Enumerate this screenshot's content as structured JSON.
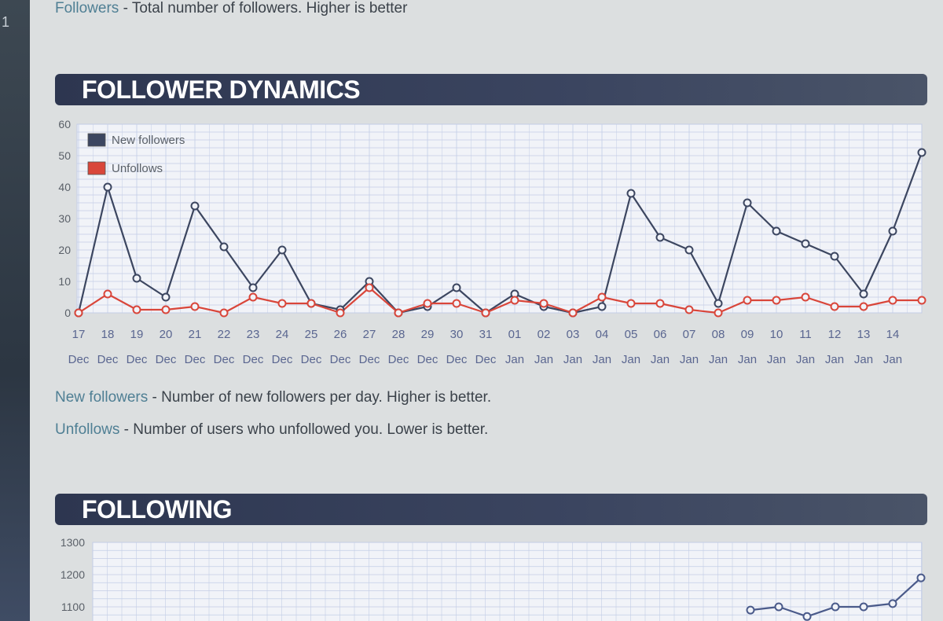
{
  "sidebar": {
    "number": "1"
  },
  "top_note": {
    "term": "Followers",
    "text": " - Total number of followers. Higher is better"
  },
  "sections": {
    "dynamics_title": "FOLLOWER DYNAMICS",
    "following_title": "FOLLOWING"
  },
  "notes": {
    "new_followers_term": "New followers",
    "new_followers_text": " - Number of new followers per day. Higher is better.",
    "unfollows_term": "Unfollows",
    "unfollows_text": " - Number of users who unfollowed you. Lower is better."
  },
  "colors": {
    "new_followers": "#3c4660",
    "unfollows": "#d9463a",
    "grid": "#c3cde6"
  },
  "chart_data": [
    {
      "type": "line",
      "title": "FOLLOWER DYNAMICS",
      "ylim": [
        0,
        60
      ],
      "yticks": [
        0,
        10,
        20,
        30,
        40,
        50,
        60
      ],
      "grid": true,
      "legend_position": "top-left",
      "categories": [
        "17",
        "18",
        "19",
        "20",
        "21",
        "22",
        "23",
        "24",
        "25",
        "26",
        "27",
        "28",
        "29",
        "30",
        "31",
        "01",
        "02",
        "03",
        "04",
        "05",
        "06",
        "07",
        "08",
        "09",
        "10",
        "11",
        "12",
        "13",
        "14",
        ""
      ],
      "month_labels": [
        "Dec",
        "Dec",
        "Dec",
        "Dec",
        "Dec",
        "Dec",
        "Dec",
        "Dec",
        "Dec",
        "Dec",
        "Dec",
        "Dec",
        "Dec",
        "Dec",
        "Dec",
        "Jan",
        "Jan",
        "Jan",
        "Jan",
        "Jan",
        "Jan",
        "Jan",
        "Jan",
        "Jan",
        "Jan",
        "Jan",
        "Jan",
        "Jan",
        "Jan",
        ""
      ],
      "series": [
        {
          "name": "New followers",
          "values": [
            0,
            40,
            11,
            5,
            34,
            21,
            8,
            20,
            3,
            1,
            10,
            0,
            2,
            8,
            0,
            6,
            2,
            0,
            2,
            38,
            24,
            20,
            3,
            35,
            26,
            22,
            18,
            6,
            26,
            51
          ]
        },
        {
          "name": "Unfollows",
          "values": [
            0,
            6,
            1,
            1,
            2,
            0,
            5,
            3,
            3,
            0,
            8,
            0,
            3,
            3,
            0,
            4,
            3,
            0,
            5,
            3,
            3,
            1,
            0,
            4,
            4,
            5,
            2,
            2,
            4,
            4
          ]
        }
      ]
    },
    {
      "type": "line",
      "title": "FOLLOWING",
      "yticks": [
        1100,
        1200,
        1300
      ],
      "grid": true,
      "series": [
        {
          "values": [
            1090,
            1100,
            1070,
            1100,
            1100,
            1110,
            1190
          ]
        }
      ]
    }
  ]
}
